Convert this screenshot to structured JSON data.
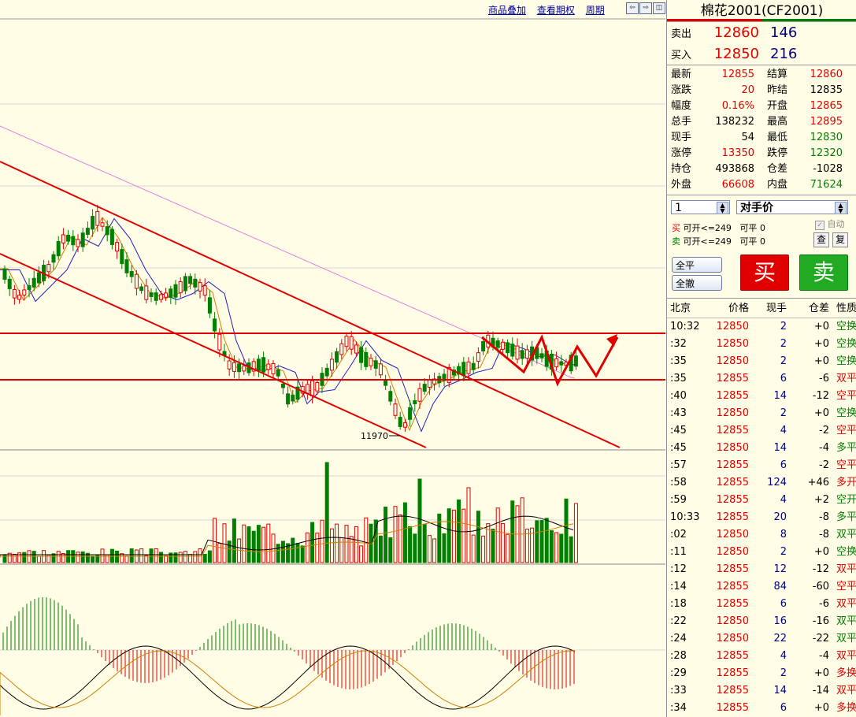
{
  "toolbar": {
    "links": [
      "商品叠加",
      "查看期权",
      "周期"
    ],
    "nav_icons": [
      "arrow-left-icon",
      "arrow-right-icon",
      "split-icon"
    ]
  },
  "chart_data": {
    "type": "candlestick",
    "annotations": [
      "11970"
    ],
    "price_levels": [
      12860,
      12800
    ]
  },
  "colors": {
    "up": "#e00000",
    "down": "#008000",
    "bg": "#fffde6"
  },
  "panel": {
    "title": "棉花2001(CF2001)",
    "sell_label": "卖出",
    "sell_price": "12860",
    "sell_vol": "146",
    "buy_label": "买入",
    "buy_price": "12850",
    "buy_vol": "216",
    "stats": [
      {
        "k": "最新",
        "v": "12855",
        "vc": "red",
        "k2": "结算",
        "v2": "12860",
        "v2c": "red"
      },
      {
        "k": "涨跌",
        "v": "20",
        "vc": "red",
        "k2": "昨结",
        "v2": "12835",
        "v2c": "blk"
      },
      {
        "k": "幅度",
        "v": "0.16%",
        "vc": "red",
        "k2": "开盘",
        "v2": "12865",
        "v2c": "red"
      },
      {
        "k": "总手",
        "v": "138232",
        "vc": "blk",
        "k2": "最高",
        "v2": "12895",
        "v2c": "red"
      },
      {
        "k": "现手",
        "v": "54",
        "vc": "blk",
        "k2": "最低",
        "v2": "12830",
        "v2c": "green"
      },
      {
        "k": "涨停",
        "v": "13350",
        "vc": "red",
        "k2": "跌停",
        "v2": "12320",
        "v2c": "green"
      },
      {
        "k": "持仓",
        "v": "493868",
        "vc": "blk",
        "k2": "仓差",
        "v2": "-1028",
        "v2c": "blk"
      },
      {
        "k": "外盘",
        "v": "66608",
        "vc": "red",
        "k2": "内盘",
        "v2": "71624",
        "v2c": "green"
      }
    ],
    "order": {
      "qty": "1",
      "price_type": "对手价",
      "auto_label": "自动",
      "buy_line": {
        "side": "买",
        "open": "可开<=249",
        "close": "可平",
        "close_val": "0"
      },
      "sell_line": {
        "side": "卖",
        "open": "可开<=249",
        "close": "可平",
        "close_val": "0"
      },
      "query_btn": "查",
      "repeat_btn": "复",
      "close_all": "全平",
      "cancel_all": "全撤",
      "buy_btn": "买",
      "sell_btn": "卖"
    },
    "ticks_header": [
      "北京",
      "价格",
      "现手",
      "仓差",
      "性质"
    ],
    "ticks": [
      {
        "t": "10:32",
        "p": "12850",
        "q": "2",
        "d": "+0",
        "n": "空换",
        "pc": "red",
        "nc": "green"
      },
      {
        "t": ":32",
        "p": "12850",
        "q": "2",
        "d": "+0",
        "n": "空换",
        "pc": "red",
        "nc": "green"
      },
      {
        "t": ":35",
        "p": "12850",
        "q": "2",
        "d": "+0",
        "n": "空换",
        "pc": "red",
        "nc": "green"
      },
      {
        "t": ":35",
        "p": "12855",
        "q": "6",
        "d": "-6",
        "n": "双平",
        "pc": "red",
        "nc": "red"
      },
      {
        "t": ":40",
        "p": "12855",
        "q": "14",
        "d": "-12",
        "n": "空平",
        "pc": "red",
        "nc": "red"
      },
      {
        "t": ":43",
        "p": "12850",
        "q": "2",
        "d": "+0",
        "n": "空换",
        "pc": "red",
        "nc": "green"
      },
      {
        "t": ":45",
        "p": "12855",
        "q": "4",
        "d": "-2",
        "n": "空平",
        "pc": "red",
        "nc": "red"
      },
      {
        "t": ":45",
        "p": "12850",
        "q": "14",
        "d": "-4",
        "n": "多平",
        "pc": "red",
        "nc": "green"
      },
      {
        "t": ":57",
        "p": "12855",
        "q": "6",
        "d": "-2",
        "n": "空平",
        "pc": "red",
        "nc": "red"
      },
      {
        "t": ":58",
        "p": "12855",
        "q": "124",
        "d": "+46",
        "n": "多开",
        "pc": "red",
        "nc": "red"
      },
      {
        "t": ":59",
        "p": "12855",
        "q": "4",
        "d": "+2",
        "n": "空开",
        "pc": "red",
        "nc": "green"
      },
      {
        "t": "10:33",
        "p": "12855",
        "q": "20",
        "d": "-8",
        "n": "多平",
        "pc": "red",
        "nc": "green"
      },
      {
        "t": ":02",
        "p": "12850",
        "q": "8",
        "d": "-8",
        "n": "双平",
        "pc": "red",
        "nc": "green"
      },
      {
        "t": ":11",
        "p": "12850",
        "q": "2",
        "d": "+0",
        "n": "空换",
        "pc": "red",
        "nc": "green"
      },
      {
        "t": ":12",
        "p": "12855",
        "q": "12",
        "d": "-12",
        "n": "双平",
        "pc": "red",
        "nc": "red"
      },
      {
        "t": ":14",
        "p": "12855",
        "q": "84",
        "d": "-60",
        "n": "空平",
        "pc": "red",
        "nc": "red"
      },
      {
        "t": ":18",
        "p": "12855",
        "q": "6",
        "d": "-6",
        "n": "双平",
        "pc": "red",
        "nc": "red"
      },
      {
        "t": ":22",
        "p": "12850",
        "q": "16",
        "d": "-16",
        "n": "双平",
        "pc": "red",
        "nc": "green"
      },
      {
        "t": ":24",
        "p": "12850",
        "q": "22",
        "d": "-22",
        "n": "双平",
        "pc": "red",
        "nc": "green"
      },
      {
        "t": ":28",
        "p": "12855",
        "q": "4",
        "d": "-4",
        "n": "双平",
        "pc": "red",
        "nc": "red"
      },
      {
        "t": ":29",
        "p": "12855",
        "q": "2",
        "d": "+0",
        "n": "多换",
        "pc": "red",
        "nc": "red"
      },
      {
        "t": ":33",
        "p": "12855",
        "q": "14",
        "d": "-14",
        "n": "双平",
        "pc": "red",
        "nc": "red"
      },
      {
        "t": ":34",
        "p": "12855",
        "q": "6",
        "d": "+0",
        "n": "多换",
        "pc": "red",
        "nc": "red"
      }
    ]
  }
}
